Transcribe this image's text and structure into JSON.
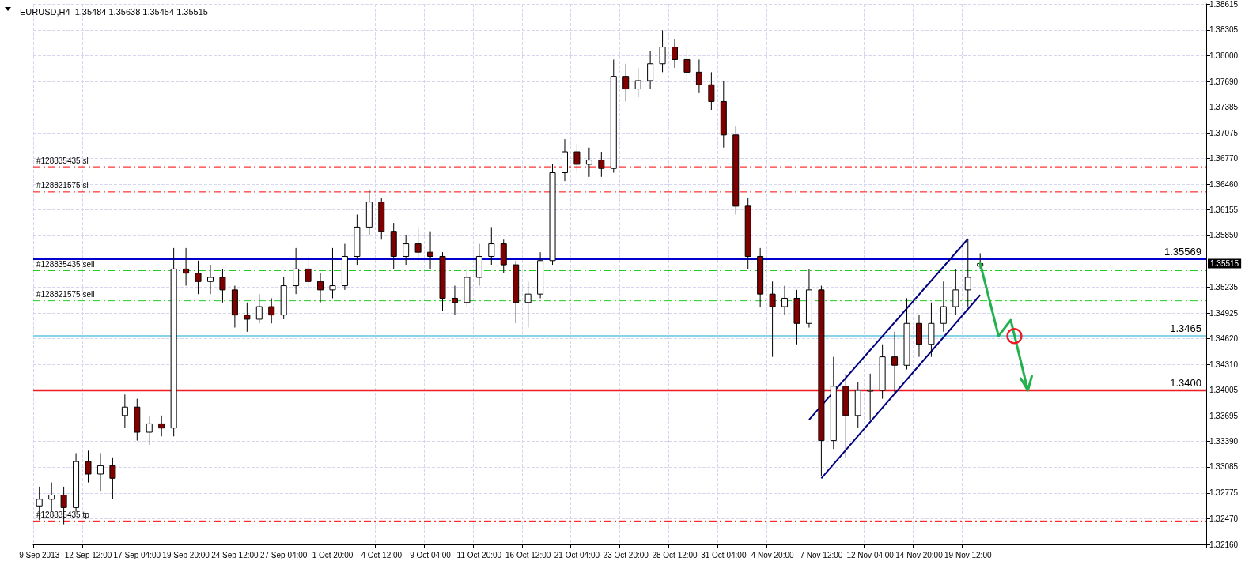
{
  "chart_data": {
    "type": "candlestick",
    "title": "EURUSD,H4  1.35484 1.35638 1.35454 1.35515",
    "categories": [
      "9 Sep 2013",
      null,
      null,
      null,
      "12 Sep 12:00",
      null,
      null,
      null,
      "17 Sep 04:00",
      null,
      null,
      null,
      "19 Sep 20:00",
      null,
      null,
      null,
      "24 Sep 12:00",
      null,
      null,
      null,
      "27 Sep 04:00",
      null,
      null,
      null,
      "1 Oct 20:00",
      null,
      null,
      null,
      "4 Oct 12:00",
      null,
      null,
      null,
      "9 Oct 04:00",
      null,
      null,
      null,
      "11 Oct 20:00",
      null,
      null,
      null,
      "16 Oct 12:00",
      null,
      null,
      null,
      "21 Oct 04:00",
      null,
      null,
      null,
      "23 Oct 20:00",
      null,
      null,
      null,
      "28 Oct 12:00",
      null,
      null,
      null,
      "31 Oct 04:00",
      null,
      null,
      null,
      "4 Nov 20:00",
      null,
      null,
      null,
      "7 Nov 12:00",
      null,
      null,
      null,
      "12 Nov 04:00",
      null,
      null,
      null,
      "14 Nov 20:00",
      null,
      null,
      null,
      "19 Nov 12:00",
      null,
      null,
      null,
      null,
      null,
      null,
      null,
      null,
      null,
      null,
      null,
      null,
      null,
      null,
      null,
      null,
      null,
      null,
      null
    ],
    "ohlc": [
      [
        1.3262,
        1.3285,
        1.3245,
        1.327
      ],
      [
        1.327,
        1.329,
        1.3255,
        1.3275
      ],
      [
        1.3275,
        1.3285,
        1.324,
        1.326
      ],
      [
        1.326,
        1.3325,
        1.3255,
        1.3315
      ],
      [
        1.3315,
        1.3328,
        1.329,
        1.33
      ],
      [
        1.33,
        1.3325,
        1.328,
        1.331
      ],
      [
        1.331,
        1.332,
        1.327,
        1.3295
      ],
      [
        1.337,
        1.3395,
        1.3355,
        1.338
      ],
      [
        1.338,
        1.339,
        1.334,
        1.335
      ],
      [
        1.335,
        1.337,
        1.3335,
        1.336
      ],
      [
        1.336,
        1.337,
        1.3345,
        1.3355
      ],
      [
        1.3355,
        1.357,
        1.3345,
        1.3545
      ],
      [
        1.3545,
        1.357,
        1.3525,
        1.354
      ],
      [
        1.354,
        1.3555,
        1.3515,
        1.353
      ],
      [
        1.353,
        1.355,
        1.3515,
        1.3535
      ],
      [
        1.3535,
        1.3545,
        1.3505,
        1.352
      ],
      [
        1.352,
        1.3525,
        1.3475,
        1.349
      ],
      [
        1.349,
        1.3505,
        1.347,
        1.3485
      ],
      [
        1.3485,
        1.3515,
        1.348,
        1.35
      ],
      [
        1.35,
        1.351,
        1.348,
        1.349
      ],
      [
        1.349,
        1.3535,
        1.3485,
        1.3525
      ],
      [
        1.3525,
        1.357,
        1.3515,
        1.3545
      ],
      [
        1.3545,
        1.356,
        1.352,
        1.353
      ],
      [
        1.353,
        1.354,
        1.3505,
        1.352
      ],
      [
        1.352,
        1.357,
        1.351,
        1.3525
      ],
      [
        1.3525,
        1.3575,
        1.352,
        1.356
      ],
      [
        1.356,
        1.361,
        1.355,
        1.3595
      ],
      [
        1.3595,
        1.364,
        1.3585,
        1.3625
      ],
      [
        1.3625,
        1.363,
        1.358,
        1.359
      ],
      [
        1.359,
        1.36,
        1.3545,
        1.356
      ],
      [
        1.356,
        1.3585,
        1.355,
        1.3575
      ],
      [
        1.3575,
        1.3595,
        1.3555,
        1.3565
      ],
      [
        1.3565,
        1.359,
        1.3545,
        1.356
      ],
      [
        1.356,
        1.3565,
        1.3495,
        1.351
      ],
      [
        1.351,
        1.3525,
        1.349,
        1.3505
      ],
      [
        1.3505,
        1.3545,
        1.35,
        1.3535
      ],
      [
        1.3535,
        1.3575,
        1.3525,
        1.356
      ],
      [
        1.356,
        1.3595,
        1.355,
        1.3575
      ],
      [
        1.3575,
        1.358,
        1.354,
        1.355
      ],
      [
        1.355,
        1.3555,
        1.348,
        1.3505
      ],
      [
        1.3505,
        1.353,
        1.3475,
        1.3515
      ],
      [
        1.3515,
        1.3565,
        1.351,
        1.3555
      ],
      [
        1.3555,
        1.367,
        1.355,
        1.366
      ],
      [
        1.366,
        1.37,
        1.365,
        1.3685
      ],
      [
        1.3685,
        1.3695,
        1.366,
        1.367
      ],
      [
        1.367,
        1.369,
        1.3655,
        1.3675
      ],
      [
        1.3675,
        1.3685,
        1.3655,
        1.3665
      ],
      [
        1.3665,
        1.3795,
        1.366,
        1.3775
      ],
      [
        1.3775,
        1.379,
        1.3745,
        1.376
      ],
      [
        1.376,
        1.3785,
        1.375,
        1.377
      ],
      [
        1.377,
        1.3805,
        1.376,
        1.379
      ],
      [
        1.379,
        1.383,
        1.378,
        1.381
      ],
      [
        1.381,
        1.382,
        1.3785,
        1.3795
      ],
      [
        1.3795,
        1.381,
        1.377,
        1.378
      ],
      [
        1.378,
        1.3795,
        1.3755,
        1.3765
      ],
      [
        1.3765,
        1.378,
        1.3735,
        1.3745
      ],
      [
        1.3745,
        1.377,
        1.369,
        1.3705
      ],
      [
        1.3705,
        1.3715,
        1.361,
        1.362
      ],
      [
        1.362,
        1.363,
        1.3545,
        1.356
      ],
      [
        1.356,
        1.357,
        1.35,
        1.3515
      ],
      [
        1.3515,
        1.353,
        1.344,
        1.35
      ],
      [
        1.35,
        1.3525,
        1.349,
        1.351
      ],
      [
        1.351,
        1.352,
        1.3455,
        1.348
      ],
      [
        1.348,
        1.3545,
        1.3475,
        1.352
      ],
      [
        1.352,
        1.3525,
        1.3298,
        1.334
      ],
      [
        1.334,
        1.344,
        1.333,
        1.3405
      ],
      [
        1.3405,
        1.342,
        1.332,
        1.337
      ],
      [
        1.337,
        1.341,
        1.3355,
        1.34
      ],
      [
        1.34,
        1.342,
        1.3365,
        1.34
      ],
      [
        1.34,
        1.3455,
        1.339,
        1.344
      ],
      [
        1.344,
        1.347,
        1.3395,
        1.343
      ],
      [
        1.343,
        1.351,
        1.3425,
        1.348
      ],
      [
        1.348,
        1.349,
        1.344,
        1.3455
      ],
      [
        1.3455,
        1.3505,
        1.344,
        1.348
      ],
      [
        1.348,
        1.353,
        1.347,
        1.35
      ],
      [
        1.35,
        1.3545,
        1.349,
        1.352
      ],
      [
        1.352,
        1.358,
        1.35,
        1.3535
      ],
      [
        1.35484,
        1.35638,
        1.35454,
        1.35515
      ],
      null,
      null,
      null,
      null,
      null,
      null,
      null,
      null,
      null,
      null,
      null,
      null,
      null,
      null,
      null,
      null,
      null,
      null
    ],
    "series": [
      {
        "type": "line",
        "color": "#000080",
        "values": [
          null,
          null,
          null,
          null,
          null,
          null,
          null,
          null,
          null,
          null,
          null,
          null,
          null,
          null,
          null,
          null,
          null,
          null,
          null,
          null,
          null,
          null,
          null,
          null,
          null,
          null,
          null,
          null,
          null,
          null,
          null,
          null,
          null,
          null,
          null,
          null,
          null,
          null,
          null,
          null,
          null,
          null,
          null,
          null,
          null,
          null,
          null,
          null,
          null,
          null,
          null,
          null,
          null,
          null,
          null,
          null,
          null,
          null,
          null,
          null,
          null,
          null,
          null,
          1.3365,
          null,
          null,
          null,
          null,
          null,
          null,
          null,
          null,
          null,
          null,
          null,
          null,
          1.3581,
          null,
          null,
          null,
          null,
          null,
          null,
          null,
          null,
          null,
          null,
          null,
          null,
          null,
          null,
          null,
          null,
          null,
          null,
          null
        ]
      },
      {
        "type": "line",
        "color": "#000080",
        "values": [
          null,
          null,
          null,
          null,
          null,
          null,
          null,
          null,
          null,
          null,
          null,
          null,
          null,
          null,
          null,
          null,
          null,
          null,
          null,
          null,
          null,
          null,
          null,
          null,
          null,
          null,
          null,
          null,
          null,
          null,
          null,
          null,
          null,
          null,
          null,
          null,
          null,
          null,
          null,
          null,
          null,
          null,
          null,
          null,
          null,
          null,
          null,
          null,
          null,
          null,
          null,
          null,
          null,
          null,
          null,
          null,
          null,
          null,
          null,
          null,
          null,
          null,
          null,
          null,
          1.3295,
          null,
          null,
          null,
          null,
          null,
          null,
          null,
          null,
          null,
          null,
          null,
          null,
          1.3514,
          null,
          null,
          null,
          null,
          null,
          null,
          null,
          null,
          null,
          null,
          null,
          null,
          null,
          null,
          null,
          null,
          null,
          null
        ]
      }
    ],
    "ylim": [
      1.3216,
      1.38615
    ],
    "yticks": [
      {
        "value": 1.3216,
        "label": "1.32160"
      },
      {
        "value": 1.3247,
        "label": "1.32470"
      },
      {
        "value": 1.32775,
        "label": "1.32775"
      },
      {
        "value": 1.33085,
        "label": "1.33085"
      },
      {
        "value": 1.3339,
        "label": "1.33390"
      },
      {
        "value": 1.33695,
        "label": "1.33695"
      },
      {
        "value": 1.34005,
        "label": "1.34005"
      },
      {
        "value": 1.3431,
        "label": "1.34310"
      },
      {
        "value": 1.3462,
        "label": "1.34620"
      },
      {
        "value": 1.34925,
        "label": "1.34925"
      },
      {
        "value": 1.35235,
        "label": "1.35235"
      },
      {
        "value": 1.3585,
        "label": "1.35850"
      },
      {
        "value": 1.36155,
        "label": "1.36155"
      },
      {
        "value": 1.3646,
        "label": "1.36460"
      },
      {
        "value": 1.3677,
        "label": "1.36770"
      },
      {
        "value": 1.37075,
        "label": "1.37075"
      },
      {
        "value": 1.37385,
        "label": "1.37385"
      },
      {
        "value": 1.3769,
        "label": "1.37690"
      },
      {
        "value": 1.38,
        "label": "1.38000"
      },
      {
        "value": 1.38305,
        "label": "1.38305"
      },
      {
        "value": 1.38615,
        "label": "1.38615"
      }
    ],
    "ref_lines": [
      {
        "axis": "y",
        "value": 1.3667,
        "label": "#128835435 sl",
        "color": "#ff0000",
        "line_style": "dashed"
      },
      {
        "axis": "y",
        "value": 1.3637,
        "label": "#128821575 sl",
        "color": "#ff0000",
        "line_style": "dashed"
      },
      {
        "axis": "y",
        "value": 1.35569,
        "label": "1.35569",
        "color": "#0000cc",
        "line_style": "solid"
      },
      {
        "axis": "y",
        "value": 1.3543,
        "label": "#128835435 sell",
        "color": "#22cc22",
        "line_style": "dashed"
      },
      {
        "axis": "y",
        "value": 1.3507,
        "label": "#128821575 sell",
        "color": "#22cc22",
        "line_style": "dashed"
      },
      {
        "axis": "y",
        "value": 1.3465,
        "label": "1.3465",
        "color": "#87d3e8",
        "line_style": "solid"
      },
      {
        "axis": "y",
        "value": 1.34,
        "label": "1.3400",
        "color": "#ee1c24",
        "line_style": "solid"
      },
      {
        "axis": "y",
        "value": 1.3244,
        "label": "#128835435 tp",
        "color": "#ff0000",
        "line_style": "dashed"
      }
    ],
    "annotations": [
      "1.35515"
    ],
    "grid": true,
    "marker": "none"
  }
}
